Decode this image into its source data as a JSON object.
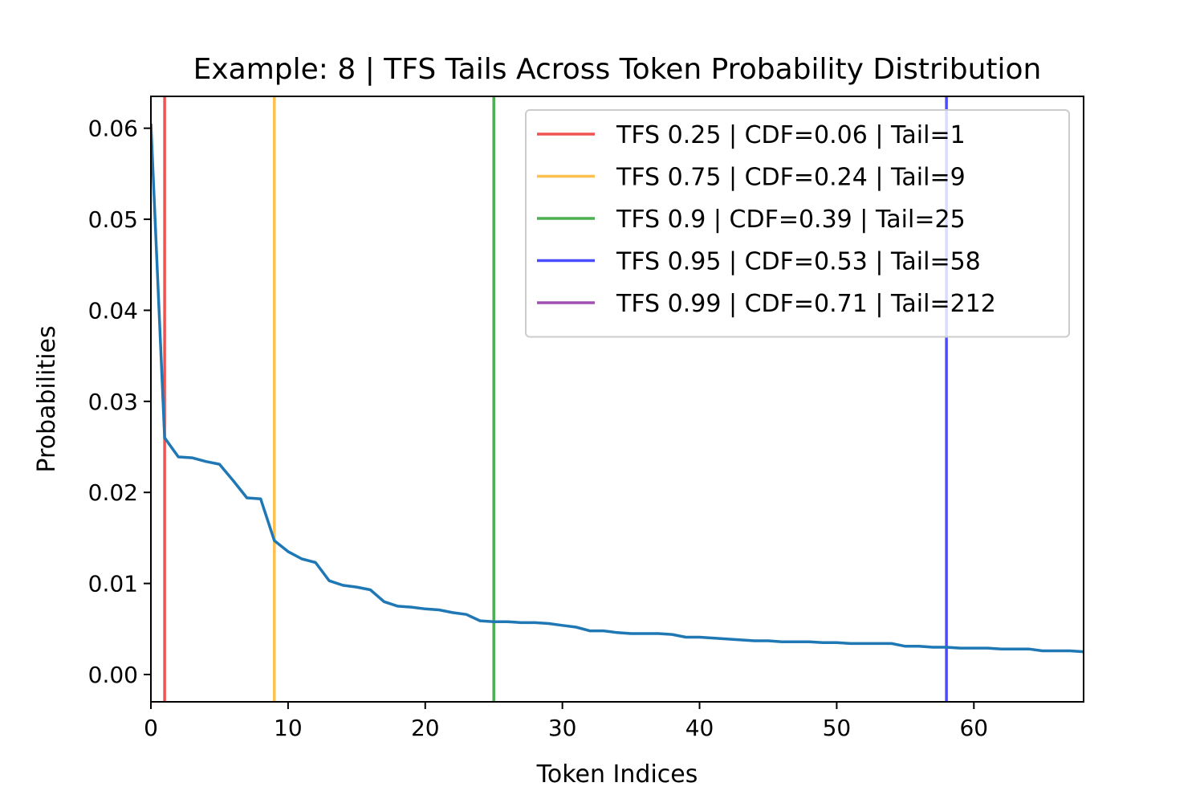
{
  "chart_data": {
    "type": "line",
    "title": "Example: 8 | TFS Tails Across Token Probability Distribution",
    "xlabel": "Token Indices",
    "ylabel": "Probabilities",
    "xlim": [
      0,
      68
    ],
    "ylim": [
      -0.003,
      0.0635
    ],
    "xticks": [
      0,
      10,
      20,
      30,
      40,
      50,
      60
    ],
    "xtick_labels": [
      "0",
      "10",
      "20",
      "30",
      "40",
      "50",
      "60"
    ],
    "yticks": [
      0.0,
      0.01,
      0.02,
      0.03,
      0.04,
      0.05,
      0.06
    ],
    "ytick_labels": [
      "0.00",
      "0.01",
      "0.02",
      "0.03",
      "0.04",
      "0.05",
      "0.06"
    ],
    "grid": false,
    "legend_position": "top-right",
    "series": [
      {
        "color": "#1f77b4",
        "x": [
          0,
          1,
          2,
          3,
          4,
          5,
          6,
          7,
          8,
          9,
          10,
          11,
          12,
          13,
          14,
          15,
          16,
          17,
          18,
          19,
          20,
          21,
          22,
          23,
          24,
          25,
          26,
          27,
          28,
          29,
          30,
          31,
          32,
          33,
          34,
          35,
          36,
          37,
          38,
          39,
          40,
          41,
          42,
          43,
          44,
          45,
          46,
          47,
          48,
          49,
          50,
          51,
          52,
          53,
          54,
          55,
          56,
          57,
          58,
          59,
          60,
          61,
          62,
          63,
          64,
          65,
          66,
          67,
          68
        ],
        "y": [
          0.0605,
          0.026,
          0.0239,
          0.0238,
          0.0234,
          0.0231,
          0.0213,
          0.0194,
          0.0193,
          0.0147,
          0.0135,
          0.0127,
          0.0123,
          0.0103,
          0.0098,
          0.0096,
          0.0093,
          0.008,
          0.0075,
          0.0074,
          0.0072,
          0.0071,
          0.0068,
          0.0066,
          0.0059,
          0.0058,
          0.0058,
          0.0057,
          0.0057,
          0.0056,
          0.0054,
          0.0052,
          0.0048,
          0.0048,
          0.0046,
          0.0045,
          0.0045,
          0.0045,
          0.0044,
          0.0041,
          0.0041,
          0.004,
          0.0039,
          0.0038,
          0.0037,
          0.0037,
          0.0036,
          0.0036,
          0.0036,
          0.0035,
          0.0035,
          0.0034,
          0.0034,
          0.0034,
          0.0034,
          0.0031,
          0.0031,
          0.003,
          0.003,
          0.0029,
          0.0029,
          0.0029,
          0.0028,
          0.0028,
          0.0028,
          0.0026,
          0.0026,
          0.0026,
          0.0025
        ]
      }
    ],
    "vlines": [
      {
        "x": 1,
        "color": "#ef5350",
        "label": "TFS 0.25 | CDF=0.06 | Tail=1"
      },
      {
        "x": 9,
        "color": "#ffc04d",
        "label": "TFS 0.75 | CDF=0.24 | Tail=9"
      },
      {
        "x": 25,
        "color": "#4caf50",
        "label": "TFS 0.9 | CDF=0.39 | Tail=25"
      },
      {
        "x": 58,
        "color": "#4b4bff",
        "label": "TFS 0.95 | CDF=0.53 | Tail=58"
      },
      {
        "x": 212,
        "color": "#a050b0",
        "label": "TFS 0.99 | CDF=0.71 | Tail=212"
      }
    ]
  }
}
